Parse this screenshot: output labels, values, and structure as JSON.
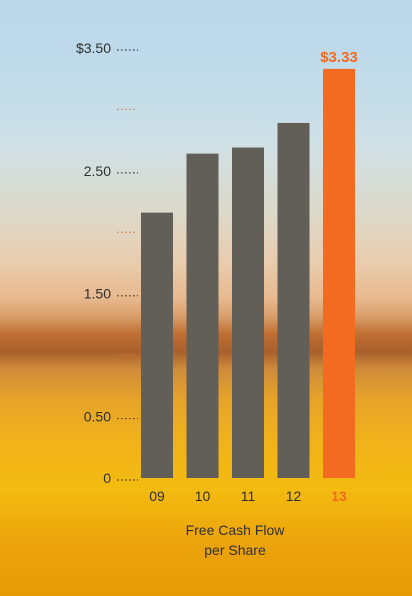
{
  "chart_data": {
    "type": "bar",
    "categories": [
      "09",
      "10",
      "11",
      "12",
      "13"
    ],
    "values": [
      2.16,
      2.64,
      2.69,
      2.89,
      3.33
    ],
    "highlight": "13",
    "data_labels": {
      "13": "$3.33"
    },
    "yticks": [
      {
        "value": 0,
        "label": "0"
      },
      {
        "value": 0.5,
        "label": "0.50"
      },
      {
        "value": 1.5,
        "label": "1.50"
      },
      {
        "value": 2.5,
        "label": "2.50"
      },
      {
        "value": 3.5,
        "label": "$3.50"
      }
    ],
    "minor_ticks": [
      1.0,
      2.0,
      3.0
    ],
    "ylim": [
      0,
      3.5
    ],
    "grid": false,
    "legend": "none",
    "colors": {
      "bar": "#625e58",
      "highlight": "#f26b21"
    }
  },
  "caption": {
    "line1": "Free Cash Flow",
    "line2": "per Share"
  }
}
